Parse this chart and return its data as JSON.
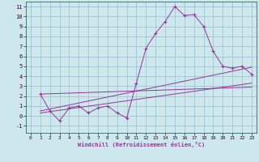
{
  "xlabel": "Windchill (Refroidissement éolien,°C)",
  "background_color": "#cce8ec",
  "line_color": "#993399",
  "grid_color": "#99bbcc",
  "xlim": [
    -0.5,
    23.5
  ],
  "ylim": [
    -1.7,
    11.5
  ],
  "xticks": [
    0,
    1,
    2,
    3,
    4,
    5,
    6,
    7,
    8,
    9,
    10,
    11,
    12,
    13,
    14,
    15,
    16,
    17,
    18,
    19,
    20,
    21,
    22,
    23
  ],
  "yticks": [
    -1,
    0,
    1,
    2,
    3,
    4,
    5,
    6,
    7,
    8,
    9,
    10,
    11
  ],
  "line1_x": [
    1,
    2,
    3,
    4,
    5,
    6,
    7,
    8,
    9,
    10,
    11,
    12,
    13,
    14,
    15,
    16,
    17,
    18,
    19,
    20,
    21,
    22,
    23
  ],
  "line1_y": [
    2.2,
    0.5,
    -0.5,
    0.8,
    1.0,
    0.3,
    0.8,
    1.0,
    0.3,
    -0.2,
    3.3,
    6.8,
    8.3,
    9.5,
    11.0,
    10.1,
    10.2,
    9.0,
    6.5,
    5.0,
    4.8,
    5.0,
    4.2
  ],
  "line2_x": [
    1,
    23
  ],
  "line2_y": [
    2.2,
    2.9
  ],
  "line3_x": [
    1,
    23
  ],
  "line3_y": [
    0.5,
    4.9
  ],
  "line4_x": [
    1,
    23
  ],
  "line4_y": [
    0.3,
    3.3
  ]
}
